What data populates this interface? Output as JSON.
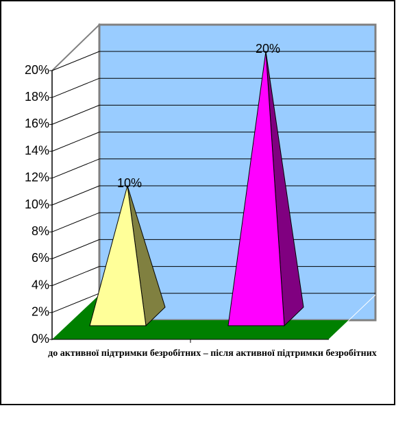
{
  "chart_data": {
    "type": "pyramid3d",
    "categories": [
      null,
      null
    ],
    "values": [
      10,
      20
    ],
    "value_labels": [
      "10%",
      "20%"
    ],
    "colors": [
      "#ffff99",
      "#ff00ff"
    ],
    "side_colors": [
      "#808040",
      "#800080"
    ],
    "x_label": "до активної підтримки безробітних – після активної підтримки безробітних",
    "ylim": [
      0,
      20
    ],
    "yticks": [
      {
        "value": 0,
        "label": "0%"
      },
      {
        "value": 2,
        "label": "2%"
      },
      {
        "value": 4,
        "label": "4%"
      },
      {
        "value": 6,
        "label": "6%"
      },
      {
        "value": 8,
        "label": "8%"
      },
      {
        "value": 10,
        "label": "10%"
      },
      {
        "value": 12,
        "label": "12%"
      },
      {
        "value": 14,
        "label": "14%"
      },
      {
        "value": 16,
        "label": "16%"
      },
      {
        "value": 18,
        "label": "18%"
      },
      {
        "value": 20,
        "label": "20%"
      }
    ],
    "grid": true
  }
}
